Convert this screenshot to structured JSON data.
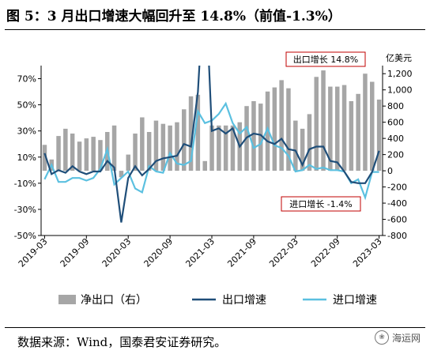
{
  "figure_title": "图 5：3 月出口增速大幅回升至 14.8%（前值-1.3%）",
  "source": "数据来源：Wind，国泰君安证券研究。",
  "watermark": "海运网",
  "watermark_icon": "wechat-logo-icon",
  "colors": {
    "bar": "#a6a6a6",
    "export": "#1f4e79",
    "import": "#5bc0e0",
    "annotation": "#c00000",
    "axis": "#000000"
  },
  "chart_data": {
    "type": "bar+line",
    "dual_axis": true,
    "title": "",
    "left_axis": {
      "ticks": [
        "70%",
        "50%",
        "30%",
        "10%",
        "-10%",
        "-30%",
        "-50%"
      ],
      "range": [
        -50,
        80
      ],
      "unit": "%"
    },
    "right_axis": {
      "ticks": [
        "1,200",
        "1,000",
        "800",
        "600",
        "400",
        "200",
        "0",
        "-200",
        "-400",
        "-600",
        "-800"
      ],
      "range": [
        -800,
        1300
      ],
      "unit_label": "亿美元"
    },
    "x_tick_labels": [
      "2019-03",
      "2019-09",
      "2020-03",
      "2020-09",
      "2021-03",
      "2021-09",
      "2022-03",
      "2022-09",
      "2023-03"
    ],
    "x_tick_indices": [
      0,
      6,
      12,
      18,
      24,
      30,
      36,
      42,
      48
    ],
    "months": [
      "2019-03",
      "2019-04",
      "2019-05",
      "2019-06",
      "2019-07",
      "2019-08",
      "2019-09",
      "2019-10",
      "2019-11",
      "2019-12",
      "2020-01",
      "2020-02",
      "2020-03",
      "2020-04",
      "2020-05",
      "2020-06",
      "2020-07",
      "2020-08",
      "2020-09",
      "2020-10",
      "2020-11",
      "2020-12",
      "2021-01",
      "2021-02",
      "2021-03",
      "2021-04",
      "2021-05",
      "2021-06",
      "2021-07",
      "2021-08",
      "2021-09",
      "2021-10",
      "2021-11",
      "2021-12",
      "2022-01",
      "2022-02",
      "2022-03",
      "2022-04",
      "2022-05",
      "2022-06",
      "2022-07",
      "2022-08",
      "2022-09",
      "2022-10",
      "2022-11",
      "2022-12",
      "2023-01",
      "2023-02",
      "2023-03"
    ],
    "series": [
      {
        "name": "净出口（右）",
        "kind": "bar",
        "axis": "right",
        "values": [
          320,
          140,
          430,
          520,
          460,
          360,
          400,
          420,
          380,
          480,
          560,
          -80,
          200,
          460,
          660,
          480,
          620,
          580,
          560,
          600,
          760,
          920,
          940,
          120,
          560,
          560,
          560,
          560,
          600,
          800,
          860,
          830,
          980,
          1030,
          1120,
          1020,
          620,
          520,
          700,
          1160,
          1240,
          1040,
          1040,
          1060,
          860,
          950,
          1200,
          1100,
          880
        ]
      },
      {
        "name": "出口增速",
        "kind": "line",
        "axis": "left",
        "values": [
          13,
          -3,
          0,
          -2,
          3,
          -1,
          -3,
          -1,
          -1,
          7,
          2,
          -40,
          -6,
          3,
          -4,
          1,
          7,
          9,
          10,
          11,
          20,
          18,
          60,
          154,
          30,
          32,
          28,
          32,
          18,
          25,
          28,
          27,
          22,
          20,
          24,
          16,
          15,
          4,
          16,
          18,
          18,
          7,
          6,
          -1,
          -9,
          -10,
          -10,
          -1.3,
          14.8
        ]
      },
      {
        "name": "进口增速",
        "kind": "line",
        "axis": "left",
        "values": [
          -7,
          4,
          -9,
          -9,
          -6,
          -6,
          -8,
          -6,
          1,
          16,
          -11,
          -6,
          -1,
          -14,
          -17,
          3,
          -1,
          -2,
          13,
          5,
          4,
          7,
          45,
          36,
          38,
          43,
          51,
          36,
          28,
          33,
          17,
          20,
          32,
          19,
          17,
          11,
          -1,
          0,
          4,
          1,
          2,
          0,
          0,
          -1,
          -10,
          -7,
          -21,
          -1.4,
          -1.4
        ]
      }
    ],
    "annotations": [
      {
        "text": "出口增长 14.8%",
        "series": "出口增速"
      },
      {
        "text": "进口增长 -1.4%",
        "series": "进口增速"
      }
    ]
  }
}
